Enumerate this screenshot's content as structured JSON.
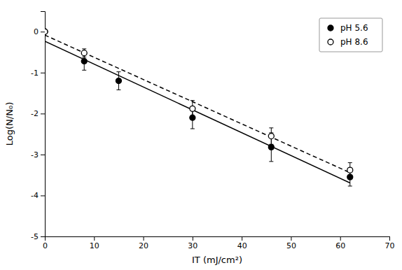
{
  "chart_data": {
    "type": "scatter",
    "xlabel": "IT (mJ/cm²)",
    "ylabel": "Log(N/N₀)",
    "xlim": [
      0,
      70
    ],
    "ylim": [
      -5,
      0.5
    ],
    "xticks": [
      0,
      10,
      20,
      30,
      40,
      50,
      60,
      70
    ],
    "yticks": [
      -5,
      -4,
      -3,
      -2,
      -1,
      0
    ],
    "grid": false,
    "legend": "upper right",
    "series": [
      {
        "name": "pH 5.6",
        "type": "scatter",
        "marker": "circle",
        "color": "black",
        "x": [
          0,
          8,
          15,
          30,
          46,
          62
        ],
        "values": [
          0,
          -0.72,
          -1.2,
          -2.1,
          -2.82,
          -3.55
        ],
        "errors": [
          0.0,
          0.22,
          0.22,
          0.27,
          0.35,
          0.22
        ]
      },
      {
        "name": "pH 8.6",
        "type": "scatter",
        "marker": "open-circle",
        "color": "black",
        "x": [
          0,
          8,
          30,
          46,
          62
        ],
        "values": [
          0,
          -0.52,
          -1.88,
          -2.55,
          -3.38
        ],
        "errors": [
          0.0,
          0.1,
          0.2,
          0.2,
          0.18
        ]
      },
      {
        "type": "line",
        "line_style": "solid",
        "color": "black",
        "x": [
          0,
          62
        ],
        "values": [
          -0.235,
          -3.6931
        ]
      },
      {
        "type": "line",
        "line_style": "dashed",
        "color": "black",
        "x": [
          0,
          62
        ],
        "values": [
          -0.0837,
          -3.4434
        ]
      }
    ]
  }
}
